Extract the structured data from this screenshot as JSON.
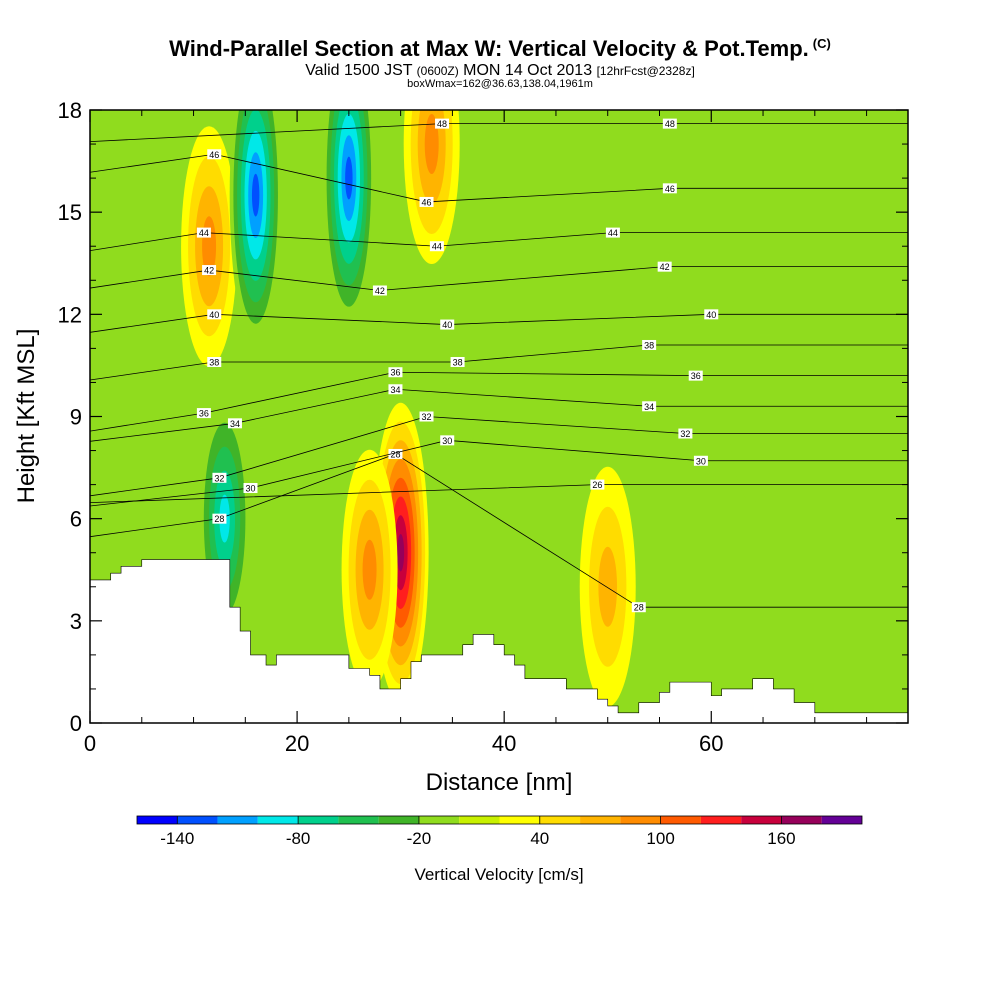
{
  "header": {
    "title": "Wind-Parallel Section at Max W: Vertical Velocity & Pot.Temp.",
    "title_unit": "(C)",
    "valid_a": "Valid 1500 JST",
    "valid_small": "(0600Z)",
    "valid_b": "MON 14 Oct 2013",
    "valid_fcst": "[12hrFcst@2328z]",
    "box_info": "boxWmax=162@36.63,138.04,1961m"
  },
  "chart_data": {
    "type": "heatmap",
    "title": "Wind-Parallel Section at Max W: Vertical Velocity & Pot.Temp.",
    "xlabel": "Distance [nm]",
    "ylabel": "Height [Kft MSL]",
    "xlim": [
      0,
      79
    ],
    "ylim": [
      0,
      18
    ],
    "x_ticks": [
      0,
      20,
      40,
      60
    ],
    "y_ticks": [
      0,
      3,
      6,
      9,
      12,
      15,
      18
    ],
    "x_tick_labels": [
      "0",
      "20",
      "40",
      "60"
    ],
    "y_tick_labels": [
      "0",
      "3",
      "6",
      "9",
      "12",
      "15",
      "18"
    ],
    "grid": false,
    "colorbar": {
      "title": "Vertical Velocity [cm/s]",
      "tick_labels": [
        "-140",
        "-80",
        "-20",
        "40",
        "100",
        "160"
      ],
      "colors": [
        "#0000ff",
        "#0050ff",
        "#00a0ff",
        "#00e8e8",
        "#00d08c",
        "#20c050",
        "#40b428",
        "#90dc1e",
        "#c8f000",
        "#ffff00",
        "#ffdc00",
        "#ffb400",
        "#ff8c00",
        "#ff5a00",
        "#ff1e1e",
        "#c8003c",
        "#96005a",
        "#640096"
      ]
    },
    "velocity_features": [
      {
        "x": 11.5,
        "y": 14.0,
        "w": 85
      },
      {
        "x": 16.0,
        "y": 15.5,
        "w": -140
      },
      {
        "x": 25.0,
        "y": 16.0,
        "w": -140
      },
      {
        "x": 30.0,
        "y": 5.0,
        "w": 160
      },
      {
        "x": 27.0,
        "y": 4.5,
        "w": 70
      },
      {
        "x": 13.0,
        "y": 6.0,
        "w": -100
      },
      {
        "x": 33.0,
        "y": 17.0,
        "w": 80
      },
      {
        "x": 50.0,
        "y": 4.0,
        "w": 60
      },
      {
        "x": 54.0,
        "y": 15.0,
        "w": -10
      },
      {
        "x": 64.0,
        "y": 10.0,
        "w": -15
      },
      {
        "x": 74.0,
        "y": 12.0,
        "w": -20
      }
    ],
    "theta_contours": [
      {
        "label": "26",
        "positions": [
          [
            49,
            7.0
          ]
        ]
      },
      {
        "label": "28",
        "positions": [
          [
            12.5,
            6.0
          ],
          [
            29.5,
            7.9
          ],
          [
            53,
            3.4
          ]
        ]
      },
      {
        "label": "30",
        "positions": [
          [
            15.5,
            6.9
          ],
          [
            34.5,
            8.3
          ],
          [
            59,
            7.7
          ]
        ]
      },
      {
        "label": "32",
        "positions": [
          [
            12.5,
            7.2
          ],
          [
            32.5,
            9.0
          ],
          [
            57.5,
            8.5
          ]
        ]
      },
      {
        "label": "34",
        "positions": [
          [
            14,
            8.8
          ],
          [
            29.5,
            9.8
          ],
          [
            54,
            9.3
          ]
        ]
      },
      {
        "label": "36",
        "positions": [
          [
            11,
            9.1
          ],
          [
            29.5,
            10.3
          ],
          [
            58.5,
            10.2
          ]
        ]
      },
      {
        "label": "38",
        "positions": [
          [
            12,
            10.6
          ],
          [
            35.5,
            10.6
          ],
          [
            54,
            11.1
          ]
        ]
      },
      {
        "label": "40",
        "positions": [
          [
            12,
            12.0
          ],
          [
            34.5,
            11.7
          ],
          [
            60,
            12.0
          ]
        ]
      },
      {
        "label": "42",
        "positions": [
          [
            11.5,
            13.3
          ],
          [
            28,
            12.7
          ],
          [
            55.5,
            13.4
          ]
        ]
      },
      {
        "label": "44",
        "positions": [
          [
            11,
            14.4
          ],
          [
            33.5,
            14.0
          ],
          [
            50.5,
            14.4
          ]
        ]
      },
      {
        "label": "46",
        "positions": [
          [
            12,
            16.7
          ],
          [
            32.5,
            15.3
          ],
          [
            56,
            15.7
          ]
        ]
      },
      {
        "label": "48",
        "positions": [
          [
            34,
            17.6
          ],
          [
            56,
            17.6
          ]
        ]
      }
    ],
    "terrain_profile": [
      [
        0,
        4.2
      ],
      [
        2,
        4.2
      ],
      [
        2,
        4.4
      ],
      [
        3,
        4.4
      ],
      [
        3,
        4.6
      ],
      [
        5,
        4.6
      ],
      [
        5,
        4.8
      ],
      [
        13.5,
        4.8
      ],
      [
        13.5,
        3.4
      ],
      [
        14.5,
        3.4
      ],
      [
        14.5,
        2.7
      ],
      [
        15.5,
        2.7
      ],
      [
        15.5,
        2.0
      ],
      [
        17,
        2.0
      ],
      [
        17,
        1.7
      ],
      [
        18,
        1.7
      ],
      [
        18,
        2.0
      ],
      [
        25,
        2.0
      ],
      [
        25,
        1.6
      ],
      [
        27,
        1.6
      ],
      [
        27,
        1.4
      ],
      [
        28,
        1.4
      ],
      [
        28,
        1.0
      ],
      [
        30,
        1.0
      ],
      [
        30,
        1.3
      ],
      [
        31,
        1.3
      ],
      [
        31,
        1.8
      ],
      [
        32,
        1.8
      ],
      [
        32,
        2.0
      ],
      [
        36,
        2.0
      ],
      [
        36,
        2.3
      ],
      [
        37,
        2.3
      ],
      [
        37,
        2.6
      ],
      [
        39,
        2.6
      ],
      [
        39,
        2.3
      ],
      [
        40,
        2.3
      ],
      [
        40,
        2.0
      ],
      [
        41,
        2.0
      ],
      [
        41,
        1.7
      ],
      [
        42,
        1.7
      ],
      [
        42,
        1.3
      ],
      [
        46,
        1.3
      ],
      [
        46,
        1.0
      ],
      [
        49,
        1.0
      ],
      [
        49,
        0.7
      ],
      [
        50,
        0.7
      ],
      [
        50,
        0.5
      ],
      [
        51,
        0.5
      ],
      [
        51,
        0.3
      ],
      [
        53,
        0.3
      ],
      [
        53,
        0.6
      ],
      [
        55,
        0.6
      ],
      [
        55,
        0.9
      ],
      [
        56,
        0.9
      ],
      [
        56,
        1.2
      ],
      [
        60,
        1.2
      ],
      [
        60,
        0.8
      ],
      [
        61,
        0.8
      ],
      [
        61,
        1.0
      ],
      [
        64,
        1.0
      ],
      [
        64,
        1.3
      ],
      [
        66,
        1.3
      ],
      [
        66,
        1.0
      ],
      [
        68,
        1.0
      ],
      [
        68,
        0.6
      ],
      [
        70,
        0.6
      ],
      [
        70,
        0.3
      ],
      [
        79,
        0.3
      ],
      [
        79,
        0
      ],
      [
        0,
        0
      ]
    ]
  }
}
